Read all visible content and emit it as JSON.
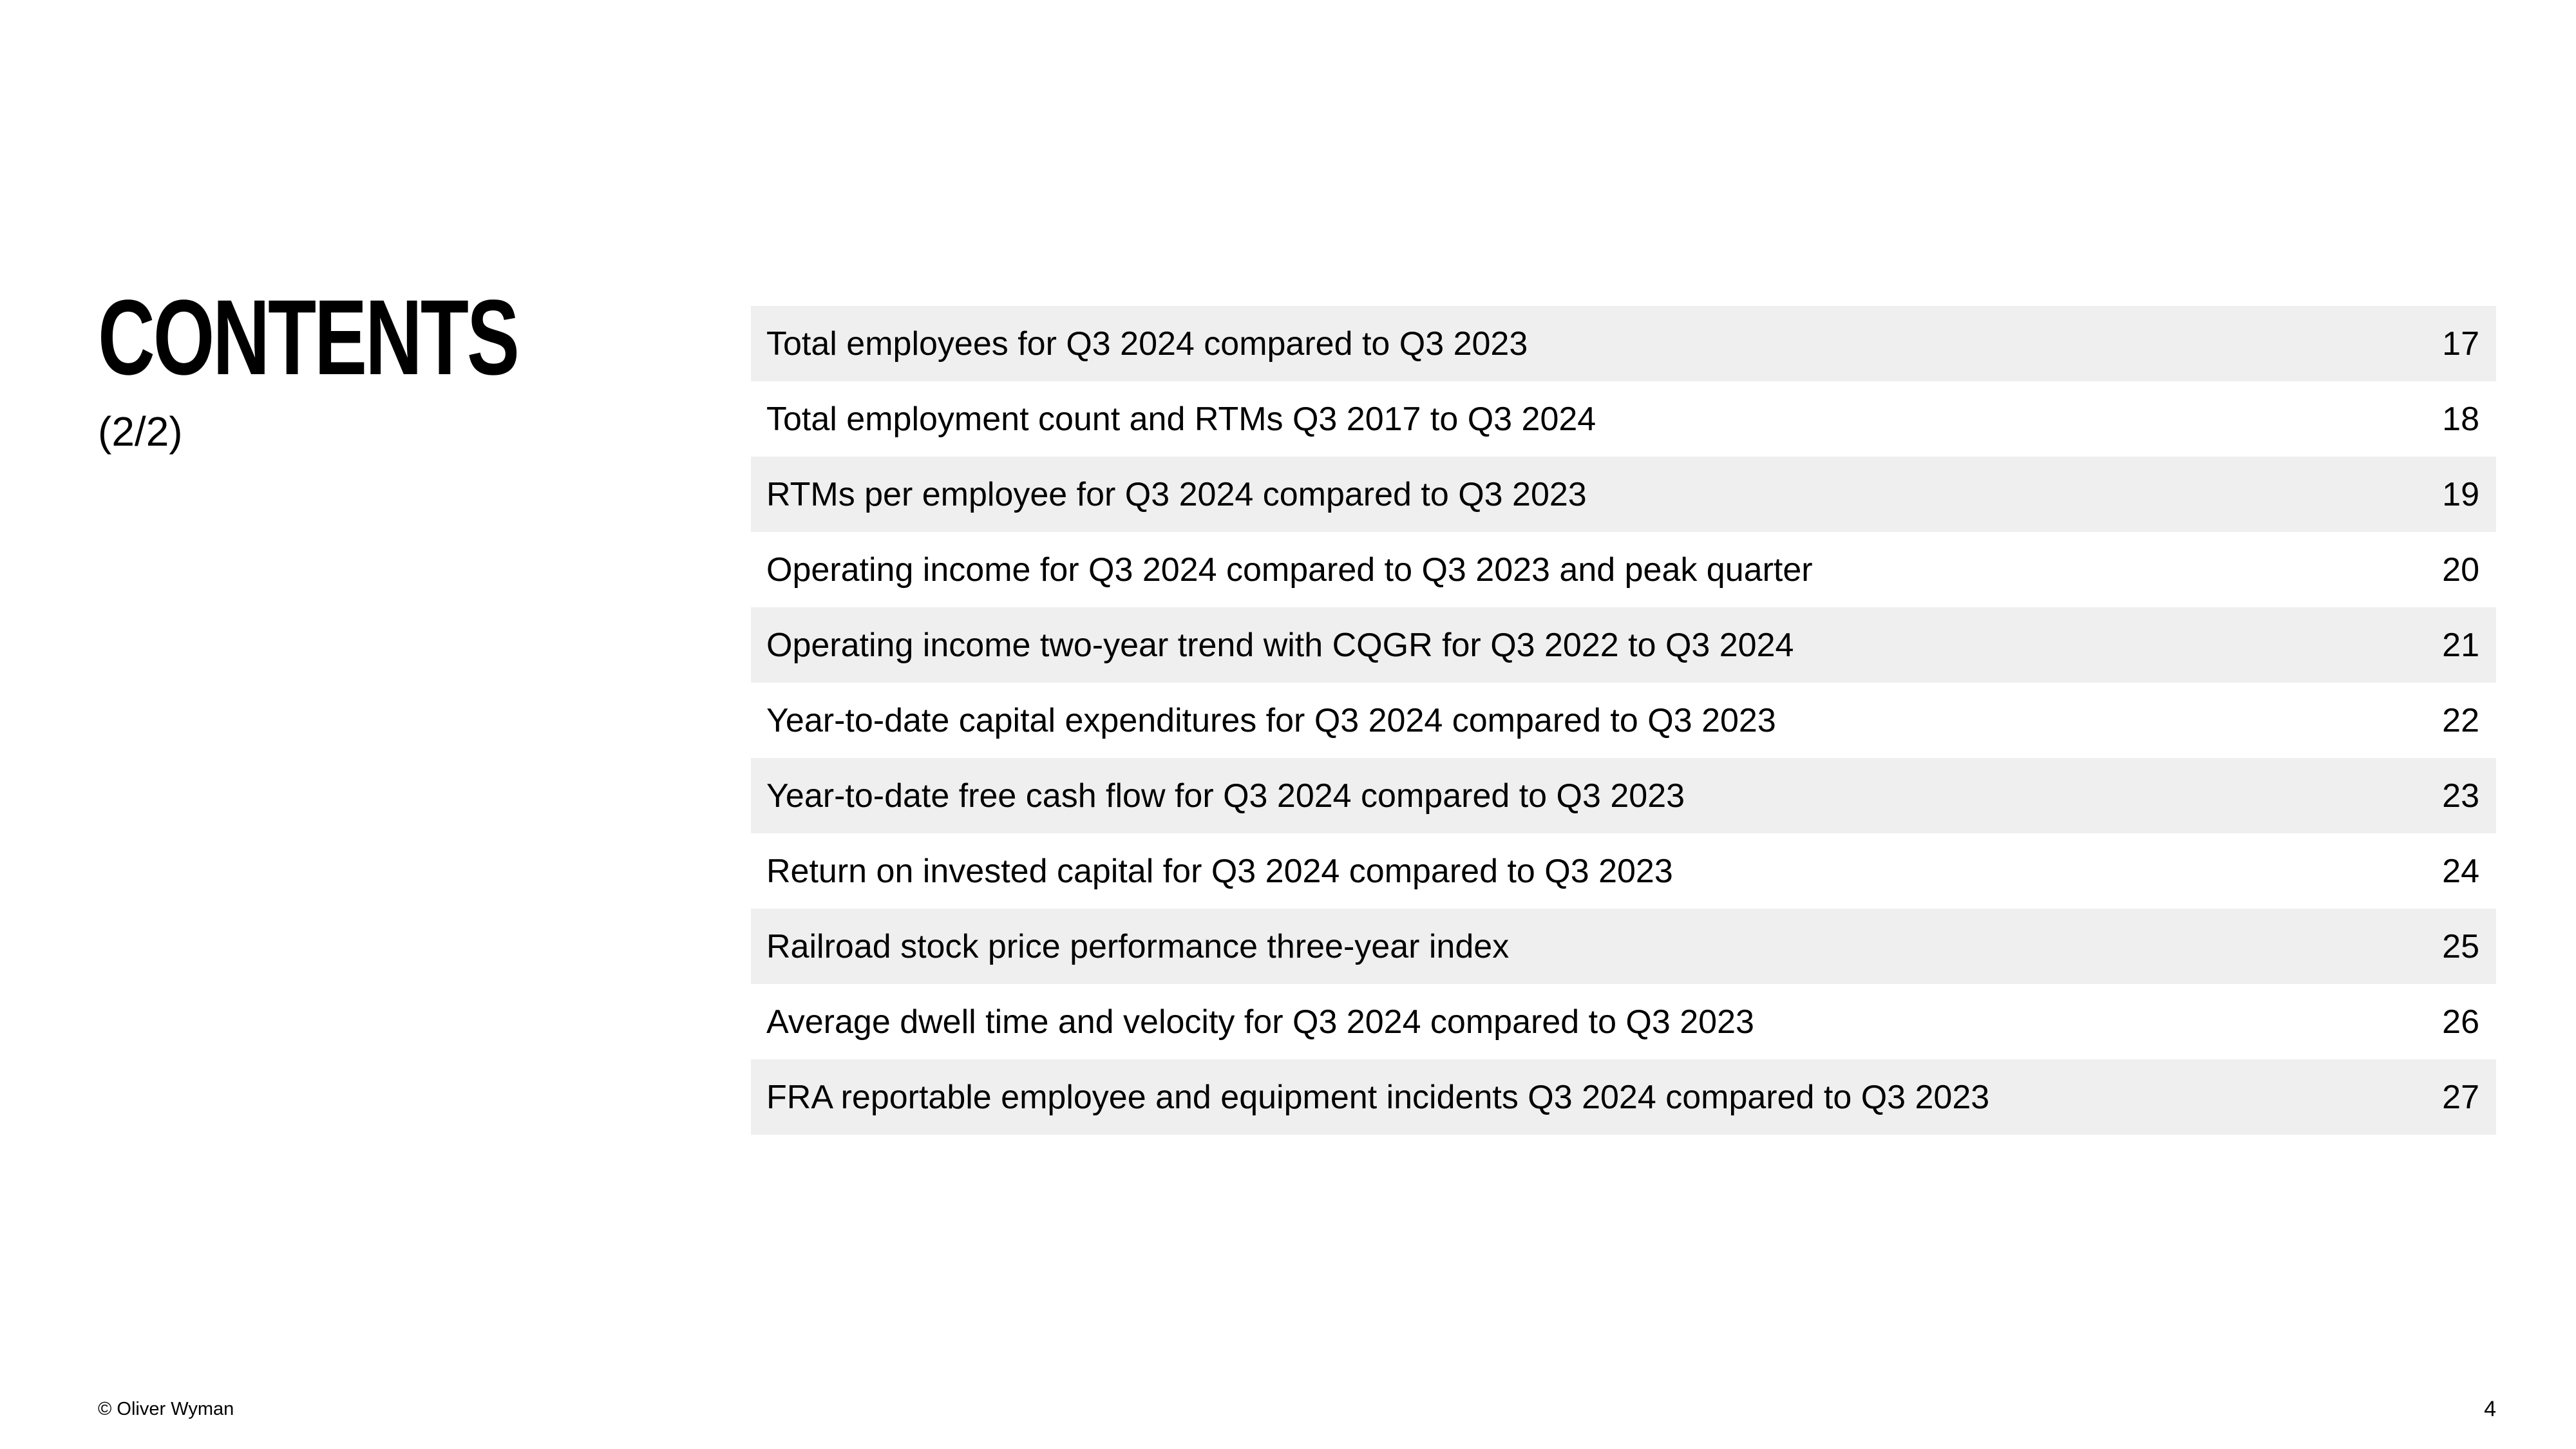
{
  "heading": {
    "title": "CONTENTS",
    "subtitle": "(2/2)"
  },
  "toc": [
    {
      "label": "Total employees for Q3 2024 compared to Q3 2023",
      "page": "17"
    },
    {
      "label": "Total employment count and RTMs Q3 2017 to Q3 2024",
      "page": "18"
    },
    {
      "label": "RTMs per employee for Q3 2024 compared to Q3 2023",
      "page": "19"
    },
    {
      "label": "Operating income for Q3 2024 compared to Q3 2023 and peak quarter",
      "page": "20"
    },
    {
      "label": "Operating income two-year trend with CQGR for Q3 2022 to Q3 2024",
      "page": "21"
    },
    {
      "label": "Year-to-date capital expenditures for Q3 2024 compared to Q3 2023",
      "page": "22"
    },
    {
      "label": "Year-to-date free cash flow for Q3 2024 compared to Q3 2023",
      "page": "23"
    },
    {
      "label": "Return on invested capital for Q3 2024 compared to Q3 2023",
      "page": "24"
    },
    {
      "label": "Railroad stock price performance three-year index",
      "page": "25"
    },
    {
      "label": "Average dwell time and velocity for Q3 2024 compared to Q3 2023",
      "page": "26"
    },
    {
      "label": "FRA reportable employee and equipment incidents Q3 2024 compared to Q3 2023",
      "page": "27"
    }
  ],
  "footer": {
    "copyright": "© Oliver Wyman",
    "page_number": "4"
  },
  "colors": {
    "row_shade": "#efefef",
    "text": "#000000"
  }
}
